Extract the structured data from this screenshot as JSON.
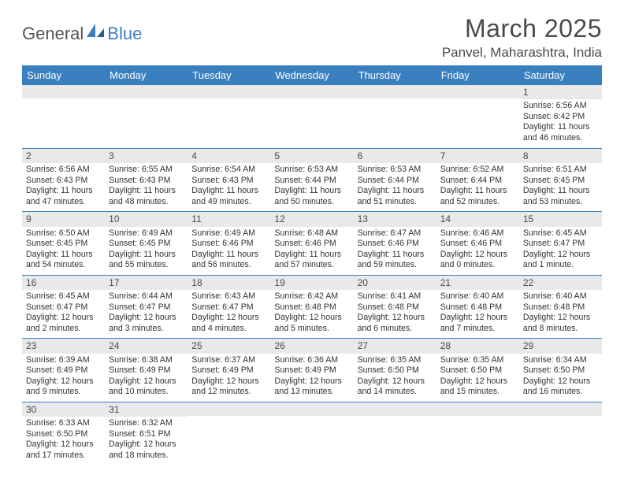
{
  "logo": {
    "part1": "General",
    "part2": "Blue"
  },
  "title": "March 2025",
  "location": "Panvel, Maharashtra, India",
  "colors": {
    "header_bg": "#3a7fbf",
    "header_text": "#ffffff",
    "daynum_bg": "#e9e9e9",
    "row_border": "#3a7fbf",
    "body_bg": "#ffffff",
    "text": "#333333"
  },
  "weekdays": [
    "Sunday",
    "Monday",
    "Tuesday",
    "Wednesday",
    "Thursday",
    "Friday",
    "Saturday"
  ],
  "first_weekday_index": 6,
  "days": [
    {
      "n": 1,
      "sunrise": "6:56 AM",
      "sunset": "6:42 PM",
      "daylight": "11 hours and 46 minutes."
    },
    {
      "n": 2,
      "sunrise": "6:56 AM",
      "sunset": "6:43 PM",
      "daylight": "11 hours and 47 minutes."
    },
    {
      "n": 3,
      "sunrise": "6:55 AM",
      "sunset": "6:43 PM",
      "daylight": "11 hours and 48 minutes."
    },
    {
      "n": 4,
      "sunrise": "6:54 AM",
      "sunset": "6:43 PM",
      "daylight": "11 hours and 49 minutes."
    },
    {
      "n": 5,
      "sunrise": "6:53 AM",
      "sunset": "6:44 PM",
      "daylight": "11 hours and 50 minutes."
    },
    {
      "n": 6,
      "sunrise": "6:53 AM",
      "sunset": "6:44 PM",
      "daylight": "11 hours and 51 minutes."
    },
    {
      "n": 7,
      "sunrise": "6:52 AM",
      "sunset": "6:44 PM",
      "daylight": "11 hours and 52 minutes."
    },
    {
      "n": 8,
      "sunrise": "6:51 AM",
      "sunset": "6:45 PM",
      "daylight": "11 hours and 53 minutes."
    },
    {
      "n": 9,
      "sunrise": "6:50 AM",
      "sunset": "6:45 PM",
      "daylight": "11 hours and 54 minutes."
    },
    {
      "n": 10,
      "sunrise": "6:49 AM",
      "sunset": "6:45 PM",
      "daylight": "11 hours and 55 minutes."
    },
    {
      "n": 11,
      "sunrise": "6:49 AM",
      "sunset": "6:46 PM",
      "daylight": "11 hours and 56 minutes."
    },
    {
      "n": 12,
      "sunrise": "6:48 AM",
      "sunset": "6:46 PM",
      "daylight": "11 hours and 57 minutes."
    },
    {
      "n": 13,
      "sunrise": "6:47 AM",
      "sunset": "6:46 PM",
      "daylight": "11 hours and 59 minutes."
    },
    {
      "n": 14,
      "sunrise": "6:46 AM",
      "sunset": "6:46 PM",
      "daylight": "12 hours and 0 minutes."
    },
    {
      "n": 15,
      "sunrise": "6:45 AM",
      "sunset": "6:47 PM",
      "daylight": "12 hours and 1 minute."
    },
    {
      "n": 16,
      "sunrise": "6:45 AM",
      "sunset": "6:47 PM",
      "daylight": "12 hours and 2 minutes."
    },
    {
      "n": 17,
      "sunrise": "6:44 AM",
      "sunset": "6:47 PM",
      "daylight": "12 hours and 3 minutes."
    },
    {
      "n": 18,
      "sunrise": "6:43 AM",
      "sunset": "6:47 PM",
      "daylight": "12 hours and 4 minutes."
    },
    {
      "n": 19,
      "sunrise": "6:42 AM",
      "sunset": "6:48 PM",
      "daylight": "12 hours and 5 minutes."
    },
    {
      "n": 20,
      "sunrise": "6:41 AM",
      "sunset": "6:48 PM",
      "daylight": "12 hours and 6 minutes."
    },
    {
      "n": 21,
      "sunrise": "6:40 AM",
      "sunset": "6:48 PM",
      "daylight": "12 hours and 7 minutes."
    },
    {
      "n": 22,
      "sunrise": "6:40 AM",
      "sunset": "6:48 PM",
      "daylight": "12 hours and 8 minutes."
    },
    {
      "n": 23,
      "sunrise": "6:39 AM",
      "sunset": "6:49 PM",
      "daylight": "12 hours and 9 minutes."
    },
    {
      "n": 24,
      "sunrise": "6:38 AM",
      "sunset": "6:49 PM",
      "daylight": "12 hours and 10 minutes."
    },
    {
      "n": 25,
      "sunrise": "6:37 AM",
      "sunset": "6:49 PM",
      "daylight": "12 hours and 12 minutes."
    },
    {
      "n": 26,
      "sunrise": "6:36 AM",
      "sunset": "6:49 PM",
      "daylight": "12 hours and 13 minutes."
    },
    {
      "n": 27,
      "sunrise": "6:35 AM",
      "sunset": "6:50 PM",
      "daylight": "12 hours and 14 minutes."
    },
    {
      "n": 28,
      "sunrise": "6:35 AM",
      "sunset": "6:50 PM",
      "daylight": "12 hours and 15 minutes."
    },
    {
      "n": 29,
      "sunrise": "6:34 AM",
      "sunset": "6:50 PM",
      "daylight": "12 hours and 16 minutes."
    },
    {
      "n": 30,
      "sunrise": "6:33 AM",
      "sunset": "6:50 PM",
      "daylight": "12 hours and 17 minutes."
    },
    {
      "n": 31,
      "sunrise": "6:32 AM",
      "sunset": "6:51 PM",
      "daylight": "12 hours and 18 minutes."
    }
  ],
  "labels": {
    "sunrise": "Sunrise:",
    "sunset": "Sunset:",
    "daylight": "Daylight:"
  }
}
